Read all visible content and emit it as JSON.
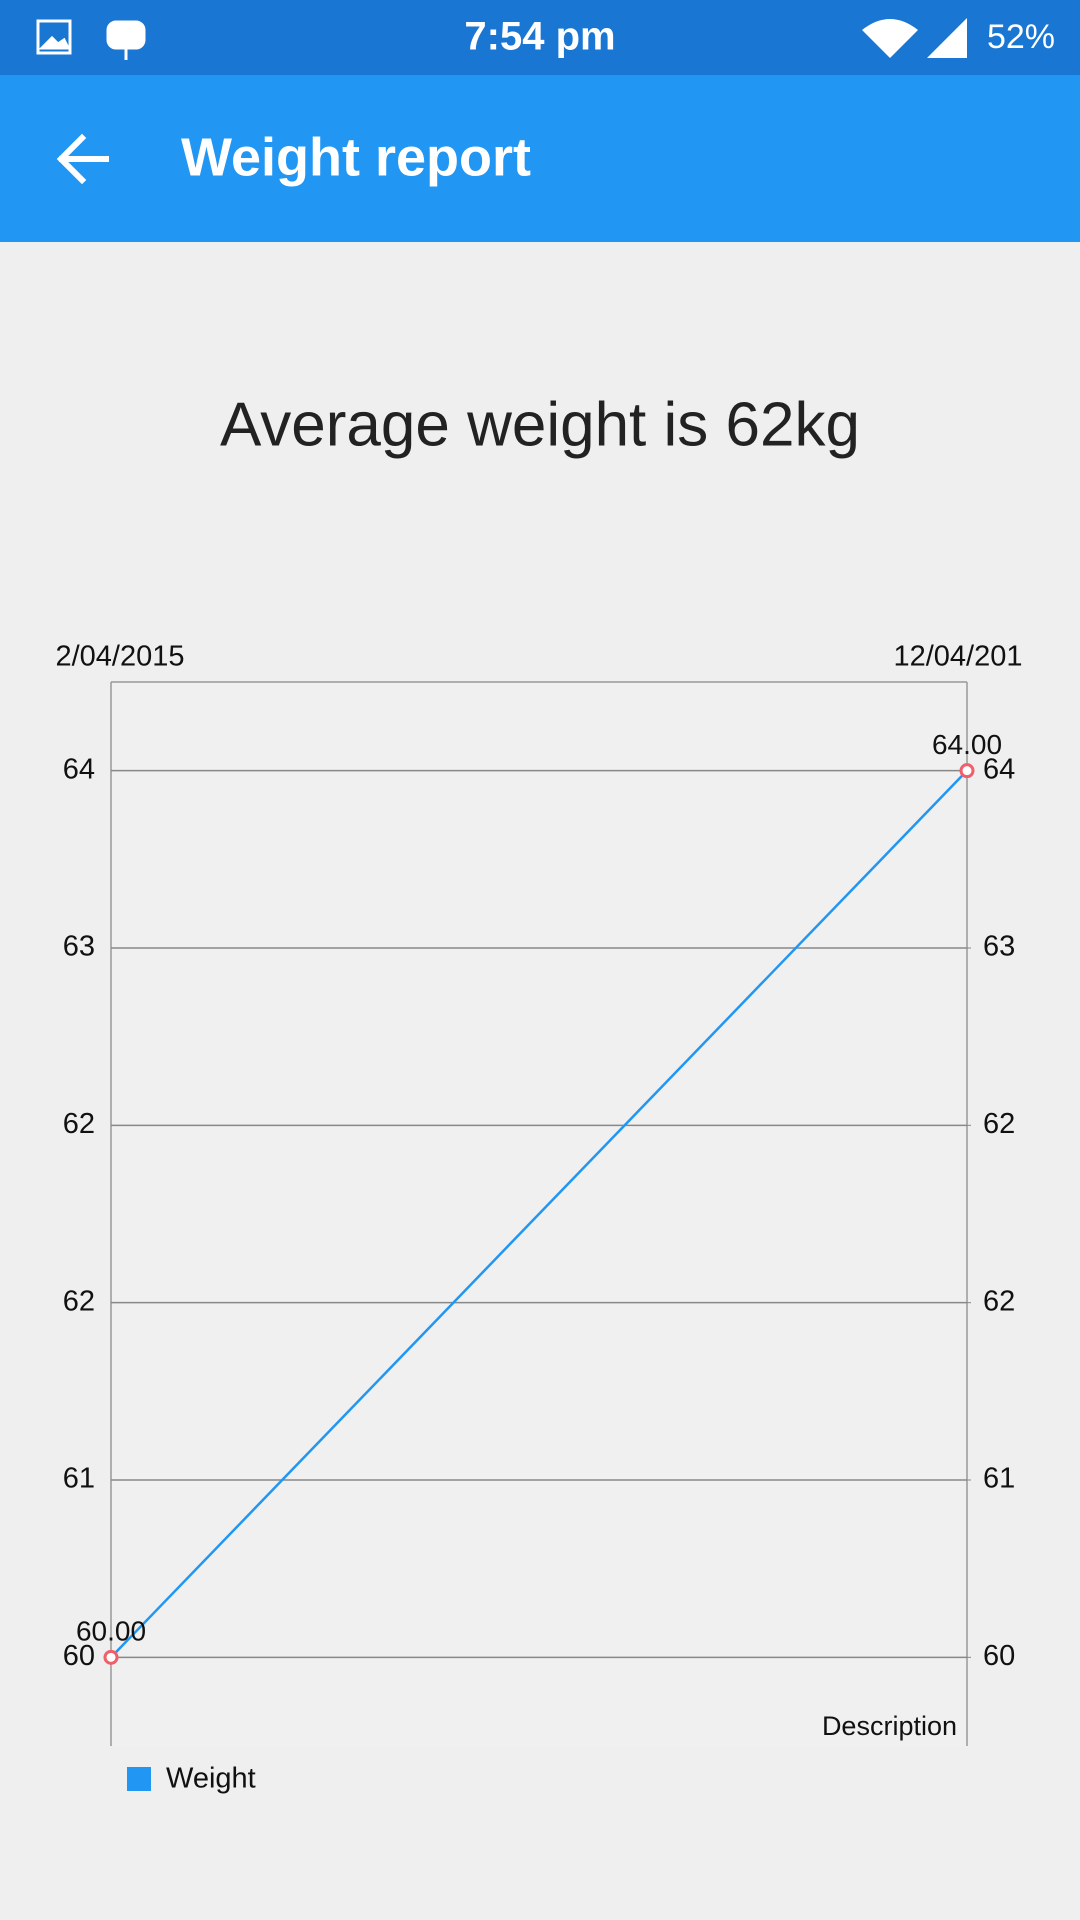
{
  "status_bar": {
    "time": "7:54 pm",
    "battery": "52%"
  },
  "app_bar": {
    "title": "Weight report"
  },
  "summary": "Average weight is 62kg",
  "chart_data": {
    "type": "line",
    "description": "Description",
    "categories": [
      "2/04/2015",
      "12/04/201"
    ],
    "series": [
      {
        "name": "Weight",
        "color": "#2196f3",
        "marker_color": "#f0606a",
        "values": [
          60,
          64
        ],
        "value_labels": [
          "60.00",
          "64.00"
        ]
      }
    ],
    "ylim": [
      59.6,
      64.4
    ],
    "yticks": [
      60,
      {
        "value": 60.8,
        "label": "61"
      },
      {
        "value": 61.6,
        "label": "62"
      },
      {
        "value": 62.4,
        "label": "62"
      },
      {
        "value": 63.2,
        "label": "63"
      },
      64
    ],
    "y2lim": [
      59.6,
      64.4
    ],
    "y2ticks": [
      60,
      {
        "value": 60.8,
        "label": "61"
      },
      {
        "value": 61.6,
        "label": "62"
      },
      {
        "value": 62.4,
        "label": "62"
      },
      {
        "value": 63.2,
        "label": "63"
      },
      64
    ],
    "grid": true
  }
}
